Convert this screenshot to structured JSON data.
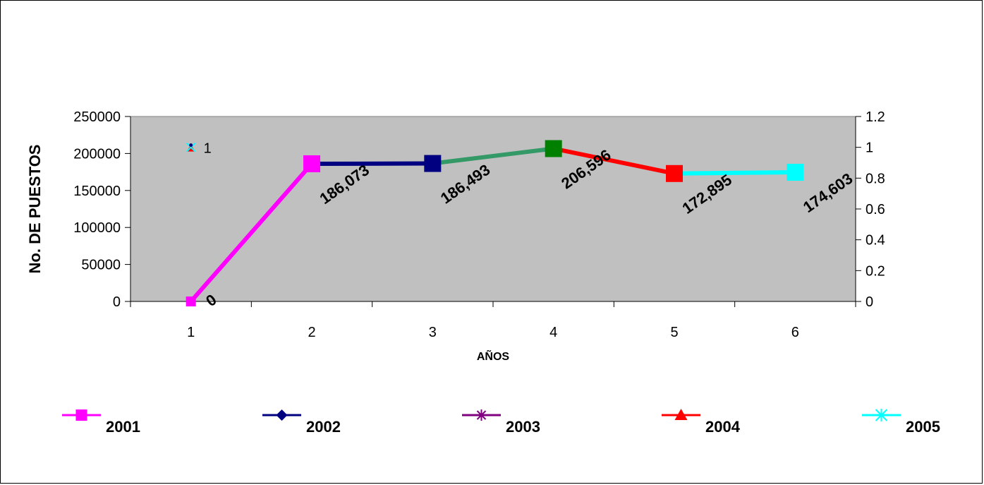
{
  "chart_data": {
    "type": "line",
    "title": "",
    "xlabel": "AÑOS",
    "ylabel": "No. DE PUESTOS",
    "categories": [
      "1",
      "2",
      "3",
      "4",
      "5",
      "6"
    ],
    "ylim": [
      0,
      250000
    ],
    "y_ticks": [
      "0",
      "50000",
      "100000",
      "150000",
      "200000",
      "250000"
    ],
    "y2lim": [
      0,
      1.2
    ],
    "y2_ticks": [
      "0",
      "0.2",
      "0.4",
      "0.6",
      "0.8",
      "1",
      "1.2"
    ],
    "grid": false,
    "plot_background": "#c0c0c0",
    "points": [
      {
        "x": 1,
        "y": 0,
        "label": "0",
        "marker_color": "#ff00ff"
      },
      {
        "x": 2,
        "y": 186073,
        "label": "186,073",
        "marker_color": "#ff00ff"
      },
      {
        "x": 3,
        "y": 186493,
        "label": "186,493",
        "marker_color": "#000080"
      },
      {
        "x": 4,
        "y": 206596,
        "label": "206,596",
        "marker_color": "#008000"
      },
      {
        "x": 5,
        "y": 172895,
        "label": "172,895",
        "marker_color": "#ff0000"
      },
      {
        "x": 6,
        "y": 174603,
        "label": "174,603",
        "marker_color": "#00ffff"
      }
    ],
    "segments": [
      {
        "from": 1,
        "to": 2,
        "color": "#ff00ff"
      },
      {
        "from": 2,
        "to": 3,
        "color": "#000080"
      },
      {
        "from": 3,
        "to": 4,
        "color": "#339966"
      },
      {
        "from": 4,
        "to": 5,
        "color": "#ff0000"
      },
      {
        "from": 5,
        "to": 6,
        "color": "#00ffff"
      }
    ],
    "stray_marker": {
      "x": 1,
      "y": 1,
      "axis": "secondary",
      "label": "1"
    },
    "legend": {
      "position": "bottom",
      "entries": [
        {
          "name": "2001",
          "color": "#ff00ff",
          "marker": "square"
        },
        {
          "name": "2002",
          "color": "#000080",
          "marker": "diamond"
        },
        {
          "name": "2003",
          "color": "#800080",
          "marker": "asterisk"
        },
        {
          "name": "2004",
          "color": "#ff0000",
          "marker": "triangle"
        },
        {
          "name": "2005",
          "color": "#00ffff",
          "marker": "x"
        }
      ]
    }
  }
}
